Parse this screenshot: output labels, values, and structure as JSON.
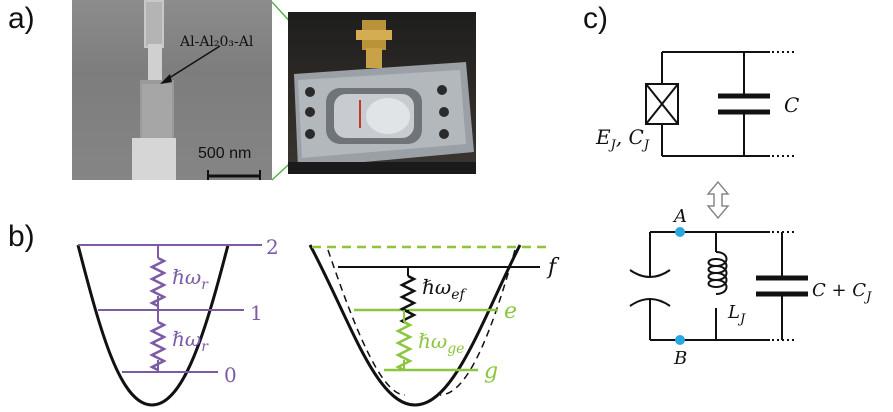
{
  "panels": {
    "a": "a)",
    "b": "b)",
    "c": "c)"
  },
  "panel_a": {
    "junction_label": "Al-Al₂0₃-Al",
    "scale_bar": "500 nm"
  },
  "panel_b": {
    "resonator": {
      "levels": [
        "0",
        "1",
        "2"
      ],
      "spacing_label": "ℏω",
      "spacing_sub": "r"
    },
    "transmon": {
      "levels": [
        "g",
        "e",
        "f"
      ],
      "ge_label": "ℏω",
      "ge_sub": "ge",
      "ef_label": "ℏω",
      "ef_sub": "ef"
    }
  },
  "panel_c": {
    "top_circuit": {
      "junction_label": "E",
      "junction_sub": "J",
      "junction_cap": "C",
      "junction_cap_sub": "J",
      "cap_label": "C"
    },
    "bottom_circuit": {
      "node_a": "A",
      "node_b": "B",
      "inductor_label": "L",
      "inductor_sub": "J",
      "cap_label": "C + C",
      "cap_sub": "J"
    }
  },
  "colors": {
    "purple": "#7b5aa6",
    "green": "#8cc63f",
    "node": "#29a8e0",
    "black": "#111111"
  }
}
